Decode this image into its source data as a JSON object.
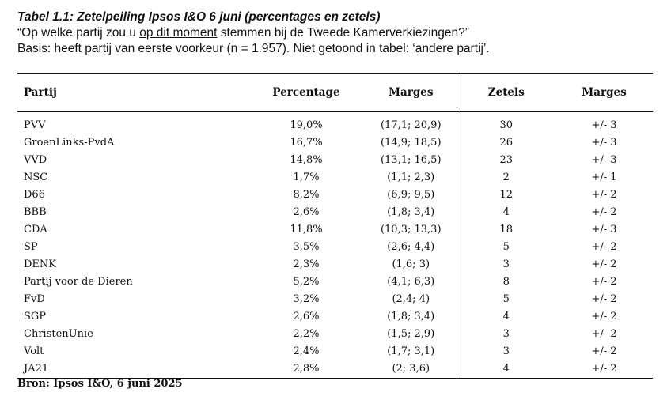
{
  "heading": {
    "title": "Tabel 1.1: Zetelpeiling Ipsos I&O 6 juni  (percentages en zetels)",
    "question_before": "“Op welke partij zou u ",
    "question_underlined": "op dit moment",
    "question_after": " stemmen bij de Tweede Kamerverkiezingen?”",
    "basis": "Basis: heeft partij van eerste voorkeur (n = 1.957). Niet getoond in tabel: ‘andere partij’."
  },
  "table": {
    "columns": [
      "Partij",
      "Percentage",
      "Marges",
      "Zetels",
      "Marges"
    ],
    "rows": [
      [
        "PVV",
        "19,0%",
        "(17,1; 20,9)",
        "30",
        "+/- 3"
      ],
      [
        "GroenLinks-PvdA",
        "16,7%",
        "(14,9; 18,5)",
        "26",
        "+/- 3"
      ],
      [
        "VVD",
        "14,8%",
        "(13,1; 16,5)",
        "23",
        "+/- 3"
      ],
      [
        "NSC",
        "1,7%",
        "(1,1; 2,3)",
        "2",
        "+/- 1"
      ],
      [
        "D66",
        "8,2%",
        "(6,9; 9,5)",
        "12",
        "+/- 2"
      ],
      [
        "BBB",
        "2,6%",
        "(1,8; 3,4)",
        "4",
        "+/- 2"
      ],
      [
        "CDA",
        "11,8%",
        "(10,3; 13,3)",
        "18",
        "+/- 3"
      ],
      [
        "SP",
        "3,5%",
        "(2,6; 4,4)",
        "5",
        "+/- 2"
      ],
      [
        "DENK",
        "2,3%",
        "(1,6; 3)",
        "3",
        "+/- 2"
      ],
      [
        "Partij voor de Dieren",
        "5,2%",
        "(4,1; 6,3)",
        "8",
        "+/- 2"
      ],
      [
        "FvD",
        "3,2%",
        "(2,4; 4)",
        "5",
        "+/- 2"
      ],
      [
        "SGP",
        "2,6%",
        "(1,8; 3,4)",
        "4",
        "+/- 2"
      ],
      [
        "ChristenUnie",
        "2,2%",
        "(1,5; 2,9)",
        "3",
        "+/- 2"
      ],
      [
        "Volt",
        "2,4%",
        "(1,7; 3,1)",
        "3",
        "+/- 2"
      ],
      [
        "JA21",
        "2,8%",
        "(2; 3,6)",
        "4",
        "+/- 2"
      ]
    ]
  },
  "source": "Bron: Ipsos I&O, 6 juni 2025"
}
